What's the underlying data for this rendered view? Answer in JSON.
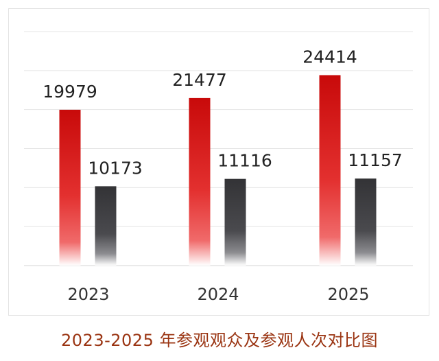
{
  "chart_data": {
    "type": "bar",
    "title": "2023-2025 年参观观众及参观人次对比图",
    "xlabel": "",
    "ylabel": "",
    "categories": [
      "2023",
      "2024",
      "2025"
    ],
    "series": [
      {
        "values": [
          19979,
          21477,
          24414
        ],
        "color": "#d10f0f"
      },
      {
        "values": [
          10173,
          11116,
          11157
        ],
        "color": "#3a3a3e"
      }
    ],
    "ylim": [
      0,
      30000
    ],
    "grid": true,
    "legend": "none"
  }
}
